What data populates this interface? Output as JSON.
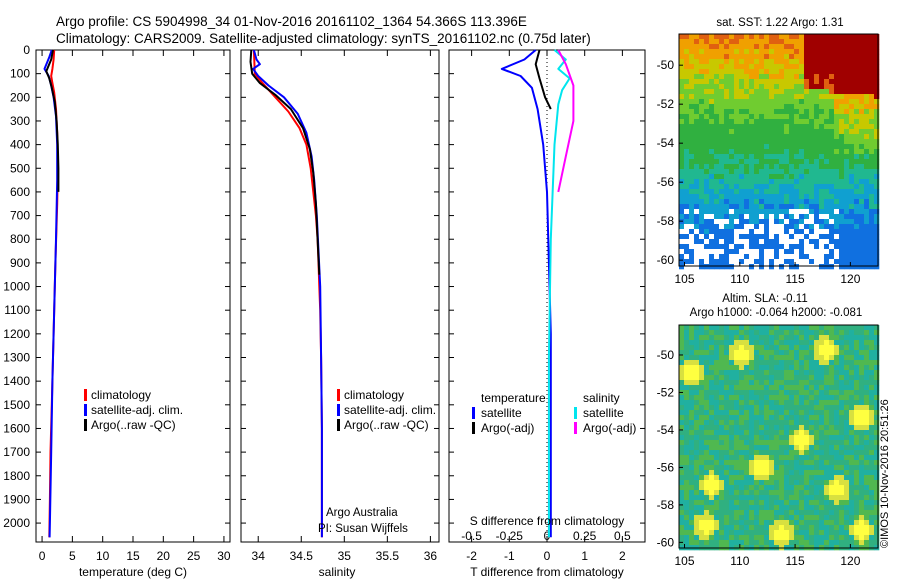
{
  "header": {
    "line1": "Argo profile: CS 5904998_34 01-Nov-2016 20161102_1364 54.366S 113.396E",
    "line2": "Climatology: CARS2009. Satellite-adjusted climatology: synTS_20161102.nc (0.75d later)"
  },
  "credit": {
    "org": "Argo Australia",
    "pi": "PI: Susan Wijffels",
    "stamp": "©IMOS 10-Nov-2016 20:51:26"
  },
  "colors": {
    "climatology": "#ff0000",
    "satellite": "#0000ff",
    "argo": "#000000",
    "satellite_s": "#00e5ee",
    "argo_s": "#ff00ff"
  },
  "chart_data": [
    {
      "id": "temperature",
      "type": "line",
      "xlabel": "temperature (deg C)",
      "xlim": [
        -1,
        31
      ],
      "xticks": [
        0,
        5,
        10,
        15,
        20,
        25,
        30
      ],
      "ylim": [
        0,
        2080
      ],
      "yticks": [
        0,
        100,
        200,
        300,
        400,
        500,
        600,
        700,
        800,
        900,
        1000,
        1100,
        1200,
        1300,
        1400,
        1500,
        1600,
        1700,
        1800,
        1900,
        2000
      ],
      "legend": [
        "climatology",
        "satellite-adj. clim.",
        "Argo(..raw -QC)"
      ],
      "series": [
        {
          "name": "climatology",
          "color": "#ff0000",
          "width": 2,
          "points": [
            [
              2.0,
              0
            ],
            [
              1.9,
              40
            ],
            [
              1.7,
              80
            ],
            [
              1.5,
              110
            ],
            [
              1.7,
              140
            ],
            [
              2.0,
              180
            ],
            [
              2.3,
              250
            ],
            [
              2.5,
              350
            ],
            [
              2.6,
              500
            ],
            [
              2.5,
              650
            ],
            [
              2.2,
              900
            ],
            [
              2.0,
              1100
            ],
            [
              1.8,
              1300
            ],
            [
              1.6,
              1500
            ],
            [
              1.4,
              1700
            ],
            [
              1.3,
              1900
            ],
            [
              1.2,
              2060
            ]
          ]
        },
        {
          "name": "satellite-adj. clim.",
          "color": "#0000ff",
          "width": 2,
          "points": [
            [
              1.6,
              0
            ],
            [
              1.2,
              30
            ],
            [
              0.4,
              80
            ],
            [
              1.1,
              110
            ],
            [
              1.5,
              150
            ],
            [
              1.9,
              200
            ],
            [
              2.3,
              280
            ],
            [
              2.5,
              400
            ],
            [
              2.5,
              550
            ],
            [
              2.3,
              800
            ],
            [
              2.0,
              1100
            ],
            [
              1.7,
              1400
            ],
            [
              1.5,
              1700
            ],
            [
              1.3,
              2000
            ],
            [
              1.25,
              2060
            ]
          ]
        },
        {
          "name": "Argo(..raw -QC)",
          "color": "#000000",
          "width": 2,
          "points": [
            [
              1.8,
              0
            ],
            [
              1.5,
              40
            ],
            [
              0.7,
              90
            ],
            [
              1.2,
              120
            ],
            [
              1.6,
              160
            ],
            [
              2.1,
              220
            ],
            [
              2.4,
              300
            ],
            [
              2.6,
              400
            ],
            [
              2.7,
              500
            ],
            [
              2.7,
              600
            ]
          ]
        }
      ]
    },
    {
      "id": "salinity",
      "type": "line",
      "xlabel": "salinity",
      "xlim": [
        33.8,
        36.1
      ],
      "xticks": [
        34,
        34.5,
        35,
        35.5,
        36
      ],
      "ylim": [
        0,
        2080
      ],
      "legend": [
        "climatology",
        "satellite-adj. clim.",
        "Argo(..raw -QC)"
      ],
      "series": [
        {
          "name": "climatology",
          "color": "#ff0000",
          "width": 2,
          "points": [
            [
              33.95,
              0
            ],
            [
              33.96,
              100
            ],
            [
              34.05,
              140
            ],
            [
              34.2,
              200
            ],
            [
              34.35,
              260
            ],
            [
              34.48,
              330
            ],
            [
              34.56,
              400
            ],
            [
              34.61,
              500
            ],
            [
              34.64,
              600
            ],
            [
              34.67,
              700
            ],
            [
              34.69,
              800
            ],
            [
              34.7,
              900
            ],
            [
              34.71,
              1000
            ],
            [
              34.72,
              1100
            ],
            [
              34.73,
              1300
            ],
            [
              34.74,
              1600
            ],
            [
              34.74,
              2060
            ]
          ]
        },
        {
          "name": "satellite-adj. clim.",
          "color": "#0000ff",
          "width": 2,
          "points": [
            [
              33.95,
              0
            ],
            [
              33.98,
              40
            ],
            [
              34.02,
              60
            ],
            [
              33.94,
              80
            ],
            [
              34.0,
              110
            ],
            [
              34.12,
              150
            ],
            [
              34.3,
              200
            ],
            [
              34.46,
              270
            ],
            [
              34.56,
              350
            ],
            [
              34.62,
              450
            ],
            [
              34.65,
              550
            ],
            [
              34.68,
              700
            ],
            [
              34.7,
              850
            ],
            [
              34.72,
              1000
            ],
            [
              34.73,
              1300
            ],
            [
              34.74,
              1600
            ],
            [
              34.74,
              2060
            ]
          ]
        },
        {
          "name": "Argo(..raw -QC)",
          "color": "#000000",
          "width": 2,
          "points": [
            [
              33.92,
              0
            ],
            [
              33.91,
              50
            ],
            [
              33.93,
              100
            ],
            [
              34.02,
              140
            ],
            [
              34.2,
              190
            ],
            [
              34.38,
              250
            ],
            [
              34.52,
              330
            ],
            [
              34.6,
              420
            ],
            [
              34.64,
              520
            ],
            [
              34.67,
              650
            ],
            [
              34.69,
              800
            ],
            [
              34.71,
              950
            ]
          ]
        }
      ]
    },
    {
      "id": "difference",
      "type": "line",
      "xlabel": "T difference from climatology",
      "xlabel_top": "S difference from climatology",
      "xlim": [
        -2.6,
        2.6
      ],
      "xticks": [
        -2,
        -1,
        0,
        1,
        2
      ],
      "s_ticks": [
        {
          "label": "-0.5",
          "t": -2
        },
        {
          "label": "-0.25",
          "t": -1
        },
        {
          "label": "0",
          "t": 0
        },
        {
          "label": "0.25",
          "t": 1
        },
        {
          "label": "0.5",
          "t": 2
        }
      ],
      "ylim": [
        0,
        2080
      ],
      "legend_titles": [
        "temperature",
        "salinity"
      ],
      "legend": [
        "satellite",
        "Argo(-adj)",
        "satellite",
        "Argo(-adj)"
      ],
      "series": [
        {
          "name": "temperature satellite",
          "color": "#0000ff",
          "width": 2,
          "points": [
            [
              -0.3,
              0
            ],
            [
              -0.6,
              40
            ],
            [
              -1.2,
              80
            ],
            [
              -0.7,
              110
            ],
            [
              -0.4,
              160
            ],
            [
              -0.25,
              250
            ],
            [
              -0.1,
              400
            ],
            [
              0.0,
              600
            ],
            [
              0.05,
              900
            ],
            [
              0.1,
              1200
            ],
            [
              0.1,
              1600
            ],
            [
              0.1,
              2060
            ]
          ]
        },
        {
          "name": "temperature Argo(-adj)",
          "color": "#000000",
          "width": 2,
          "points": [
            [
              -0.2,
              0
            ],
            [
              -0.3,
              60
            ],
            [
              -0.2,
              120
            ],
            [
              -0.05,
              200
            ],
            [
              0.1,
              250
            ]
          ]
        },
        {
          "name": "salinity satellite",
          "color": "#00e5ee",
          "width": 2,
          "points": [
            [
              0.2,
              0
            ],
            [
              0.5,
              40
            ],
            [
              0.3,
              80
            ],
            [
              0.6,
              120
            ],
            [
              0.4,
              170
            ],
            [
              0.3,
              230
            ],
            [
              0.2,
              400
            ],
            [
              0.1,
              800
            ],
            [
              0.05,
              1300
            ],
            [
              0.05,
              2060
            ]
          ]
        },
        {
          "name": "salinity Argo(-adj)",
          "color": "#ff00ff",
          "width": 2,
          "points": [
            [
              0.3,
              0
            ],
            [
              0.5,
              60
            ],
            [
              0.7,
              150
            ],
            [
              0.7,
              300
            ],
            [
              0.5,
              450
            ],
            [
              0.3,
              600
            ]
          ]
        }
      ]
    },
    {
      "id": "sst_map",
      "type": "heatmap",
      "title": "sat. SST: 1.22 Argo: 1.31",
      "xlim": [
        104.5,
        122.5
      ],
      "ylim": [
        -60.3,
        -48.4
      ],
      "xticks": [
        105,
        110,
        115,
        120
      ],
      "yticks": [
        -50,
        -52,
        -54,
        -56,
        -58,
        -60
      ]
    },
    {
      "id": "sla_map",
      "type": "heatmap",
      "title": "Altim. SLA: -0.11",
      "subtitle": "Argo h1000: -0.064 h2000: -0.081",
      "xlim": [
        104.5,
        122.5
      ],
      "ylim": [
        -60.3,
        -48.4
      ],
      "xticks": [
        105,
        110,
        115,
        120
      ],
      "yticks": [
        -50,
        -52,
        -54,
        -56,
        -58,
        -60
      ]
    }
  ]
}
